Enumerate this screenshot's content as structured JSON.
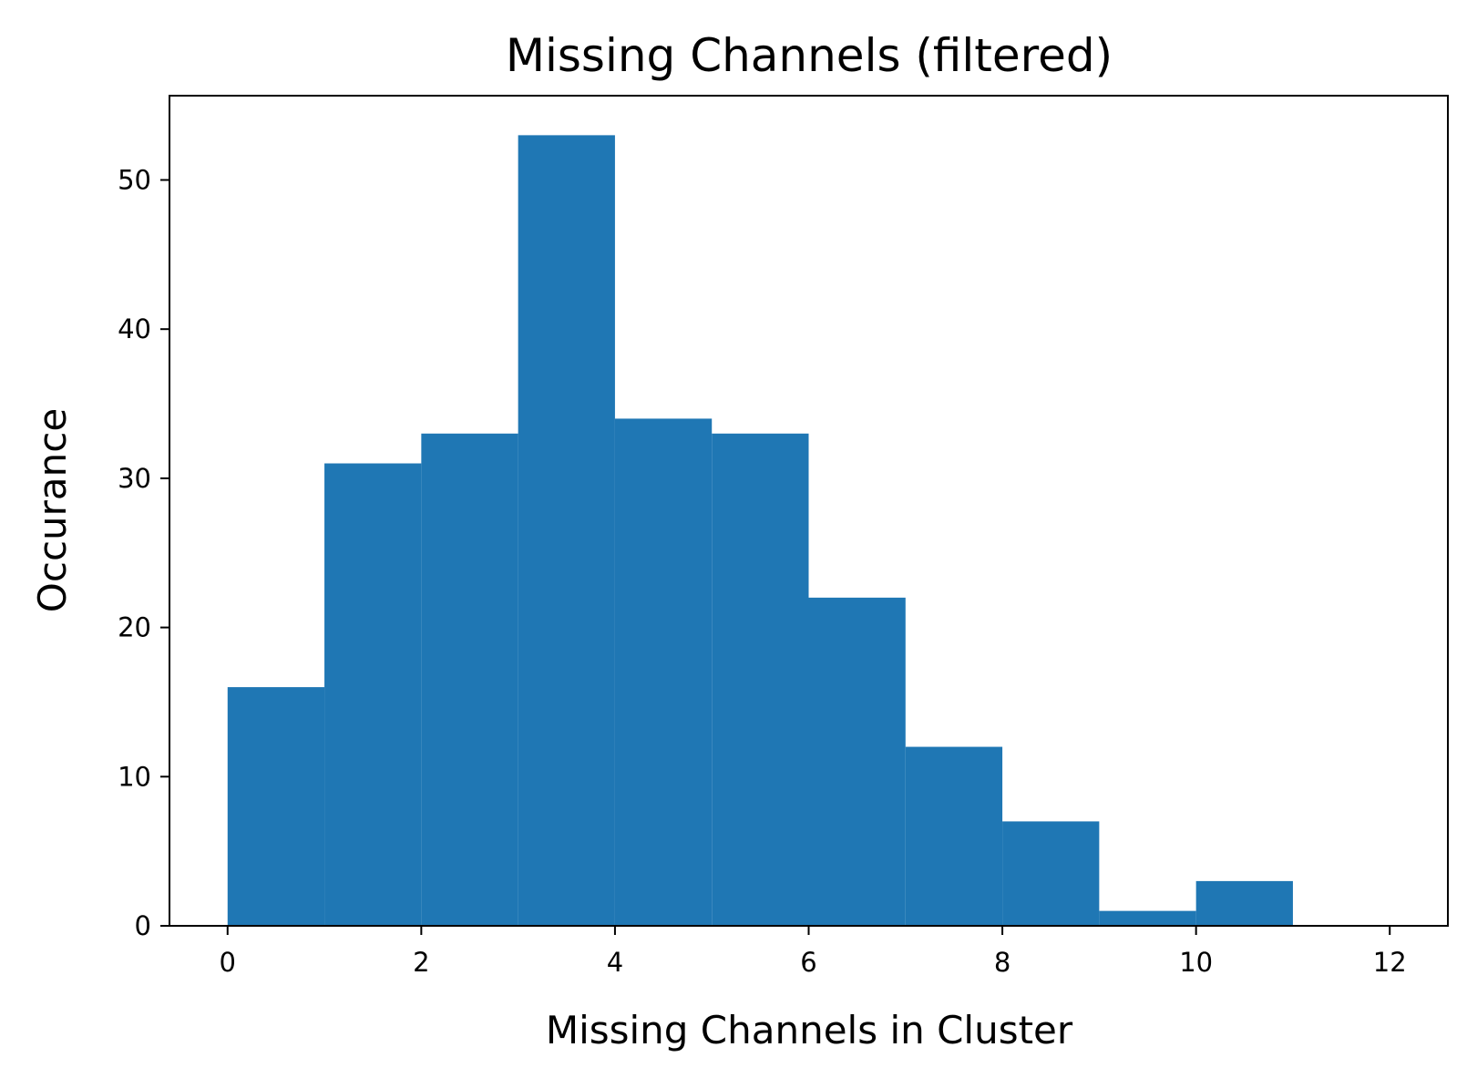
{
  "chart_data": {
    "type": "bar",
    "title": "Missing Channels (filtered)",
    "xlabel": "Missing Channels in Cluster",
    "ylabel": "Occurance",
    "bins": [
      {
        "start": 0,
        "end": 1,
        "value": 16
      },
      {
        "start": 1,
        "end": 2,
        "value": 31
      },
      {
        "start": 2,
        "end": 3,
        "value": 33
      },
      {
        "start": 3,
        "end": 4,
        "value": 53
      },
      {
        "start": 4,
        "end": 5,
        "value": 34
      },
      {
        "start": 5,
        "end": 6,
        "value": 33
      },
      {
        "start": 6,
        "end": 7,
        "value": 22
      },
      {
        "start": 7,
        "end": 8,
        "value": 12
      },
      {
        "start": 8,
        "end": 9,
        "value": 7
      },
      {
        "start": 9,
        "end": 10,
        "value": 1
      },
      {
        "start": 10,
        "end": 11,
        "value": 3
      },
      {
        "start": 11,
        "end": 12,
        "value": 0
      }
    ],
    "xlim": [
      -0.6,
      12.6
    ],
    "ylim": [
      0,
      55.65
    ],
    "xticks": [
      "0",
      "2",
      "4",
      "6",
      "8",
      "10",
      "12"
    ],
    "yticks": [
      "0",
      "10",
      "20",
      "30",
      "40",
      "50"
    ],
    "bar_color": "#1f77b4",
    "grid": false,
    "legend": "none"
  }
}
